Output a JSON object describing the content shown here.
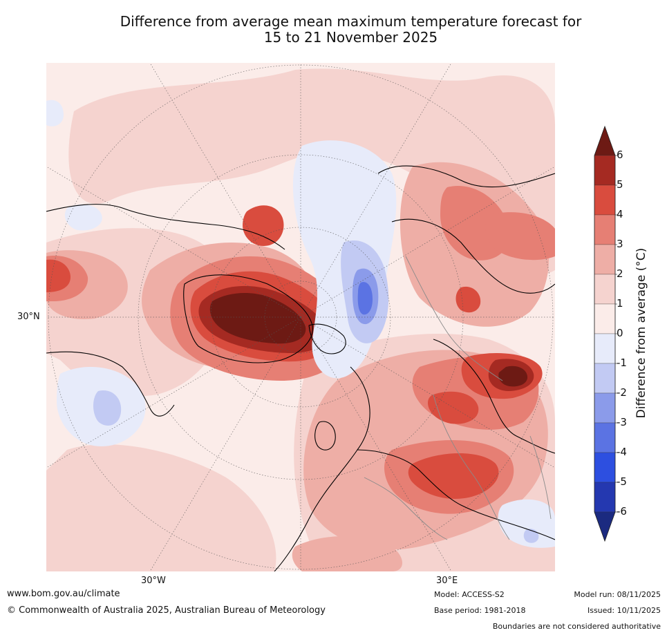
{
  "title_line1": "Difference from average mean maximum temperature forecast for",
  "title_line2": "15 to 21 November 2025",
  "map": {
    "labels": {
      "lat_30n": "30°N",
      "lon_30w": "30°W",
      "lon_30e": "30°E"
    }
  },
  "colorbar": {
    "title": "Difference from average (°C)",
    "ticks": [
      "6",
      "5",
      "4",
      "3",
      "2",
      "1",
      "0",
      "-1",
      "-2",
      "-3",
      "-4",
      "-5",
      "-6"
    ],
    "colors": {
      "extend_high": "#6d1a14",
      "b5_6": "#a52a22",
      "b4_5": "#d94c3e",
      "b3_4": "#e67f74",
      "b2_3": "#eeaea6",
      "b1_2": "#f5d3cf",
      "b0_1": "#fbece9",
      "bm1_0": "#e7ebfa",
      "bm2_m1": "#c2caf3",
      "bm3_m2": "#8b9bea",
      "bm4_m3": "#5b73e3",
      "bm5_m4": "#2d4fe0",
      "bm6_m5": "#2438b0",
      "extend_low": "#1b2a80"
    }
  },
  "footer": {
    "website": "www.bom.gov.au/climate",
    "copyright": "© Commonwealth of Australia 2025, Australian Bureau of Meteorology",
    "model": "Model: ACCESS-S2",
    "base_period": "Base period: 1981-2018",
    "model_run": "Model run: 08/11/2025",
    "issued": "Issued: 10/11/2025",
    "disclaimer": "Boundaries are not considered authoritative"
  }
}
